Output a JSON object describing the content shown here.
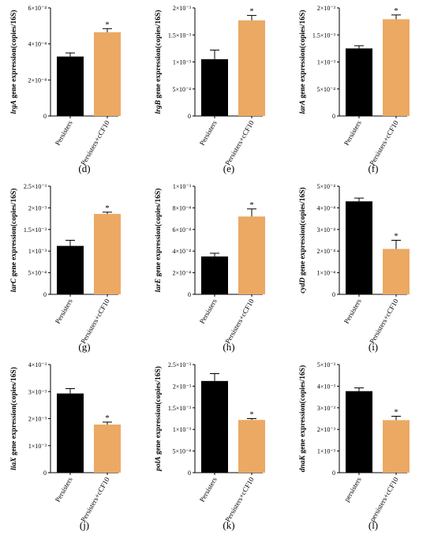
{
  "colors": {
    "control": "#000000",
    "treated": "#EBA964",
    "axis": "#000000"
  },
  "chart_data": [
    {
      "type": "bar",
      "panel_label": "(d)",
      "gene": "lrgA",
      "ylabel_suffix": " gene expression(copies/16S)",
      "categories": [
        "Persisters",
        "Persisters+cCF10"
      ],
      "values": [
        0.00033,
        0.000465
      ],
      "errors": [
        2e-05,
        2e-05
      ],
      "ylim": [
        0,
        0.0006
      ],
      "yticks": [
        0,
        0.0002,
        0.0004,
        0.0006
      ],
      "ytick_labels": [
        "0",
        "2×10⁻⁴",
        "4×10⁻⁴",
        "6×10⁻⁴"
      ],
      "significance": [
        "",
        "*"
      ]
    },
    {
      "type": "bar",
      "panel_label": "(e)",
      "gene": "lrgB",
      "ylabel_suffix": " gene expression(copies/16S)",
      "categories": [
        "Persisters",
        "Persisters+cCF10"
      ],
      "values": [
        0.00105,
        0.00177
      ],
      "errors": [
        0.00017,
        9e-05
      ],
      "ylim": [
        0,
        0.002
      ],
      "yticks": [
        0,
        0.0005,
        0.001,
        0.0015,
        0.002
      ],
      "ytick_labels": [
        "0",
        "5×10⁻⁴",
        "1×10⁻³",
        "1.5×10⁻³",
        "2×10⁻³"
      ],
      "significance": [
        "",
        "*"
      ]
    },
    {
      "type": "bar",
      "panel_label": "(f)",
      "gene": "larA",
      "ylabel_suffix": " gene expression(copies/16S)",
      "categories": [
        "Persisters",
        "Persisters+cCF10"
      ],
      "values": [
        0.00125,
        0.00179
      ],
      "errors": [
        5e-05,
        8e-05
      ],
      "ylim": [
        0,
        0.002
      ],
      "yticks": [
        0,
        0.0005,
        0.001,
        0.0015,
        0.002
      ],
      "ytick_labels": [
        "0",
        "5×10⁻⁴",
        "1×10⁻³",
        "1.5×10⁻³",
        "2×10⁻³"
      ],
      "significance": [
        "",
        "*"
      ]
    },
    {
      "type": "bar",
      "panel_label": "(g)",
      "gene": "larC",
      "ylabel_suffix": " gene expression(copies/16S)",
      "categories": [
        "Persisters",
        "Persisters+cCF10"
      ],
      "values": [
        0.00112,
        0.00186
      ],
      "errors": [
        0.00013,
        4e-05
      ],
      "ylim": [
        0,
        0.0025
      ],
      "yticks": [
        0,
        0.0005,
        0.001,
        0.0015,
        0.002,
        0.0025
      ],
      "ytick_labels": [
        "0",
        "5×10⁻⁴",
        "1×10⁻³",
        "1.5×10⁻³",
        "2×10⁻³",
        "2.5×10⁻³"
      ],
      "significance": [
        "",
        "*"
      ]
    },
    {
      "type": "bar",
      "panel_label": "(h)",
      "gene": "larE",
      "ylabel_suffix": " gene expression(copies/16S)",
      "categories": [
        "Persisters",
        "Persisters+cCF10"
      ],
      "values": [
        0.00035,
        0.00072
      ],
      "errors": [
        3e-05,
        7e-05
      ],
      "ylim": [
        0,
        0.001
      ],
      "yticks": [
        0,
        0.0002,
        0.0004,
        0.0006,
        0.0008,
        0.001
      ],
      "ytick_labels": [
        "0",
        "2×10⁻⁴",
        "4×10⁻⁴",
        "6×10⁻⁴",
        "8×10⁻⁴",
        "1×10⁻³"
      ],
      "significance": [
        "",
        "*"
      ]
    },
    {
      "type": "bar",
      "panel_label": "(i)",
      "gene": "cydD",
      "ylabel_suffix": " gene expression(copies/16S)",
      "categories": [
        "Persisters",
        "Persisters+cCF10"
      ],
      "values": [
        0.00043,
        0.00021
      ],
      "errors": [
        1.5e-05,
        4e-05
      ],
      "ylim": [
        0,
        0.0005
      ],
      "yticks": [
        0,
        0.0001,
        0.0002,
        0.0003,
        0.0004,
        0.0005
      ],
      "ytick_labels": [
        "0",
        "1×10⁻⁴",
        "2×10⁻⁴",
        "3×10⁻⁴",
        "4×10⁻⁴",
        "5×10⁻⁴"
      ],
      "significance": [
        "",
        "*"
      ]
    },
    {
      "type": "bar",
      "panel_label": "(j)",
      "gene": "liaX",
      "ylabel_suffix": " gene expression(copies/16S)",
      "categories": [
        "Persisters",
        "Persisters+cCF10"
      ],
      "values": [
        0.00293,
        0.00178
      ],
      "errors": [
        0.00018,
        9e-05
      ],
      "ylim": [
        0,
        0.004
      ],
      "yticks": [
        0,
        0.001,
        0.002,
        0.003,
        0.004
      ],
      "ytick_labels": [
        "0",
        "1×10⁻³",
        "2×10⁻³",
        "3×10⁻³",
        "4×10⁻³"
      ],
      "significance": [
        "",
        "*"
      ]
    },
    {
      "type": "bar",
      "panel_label": "(k)",
      "gene": "polA",
      "ylabel_suffix": " gene expression(copies/16S)",
      "categories": [
        "Persisters",
        "Persisters+cCF10"
      ],
      "values": [
        0.00212,
        0.00122
      ],
      "errors": [
        0.00017,
        3e-05
      ],
      "ylim": [
        0,
        0.0025
      ],
      "yticks": [
        0,
        0.0005,
        0.001,
        0.0015,
        0.002,
        0.0025
      ],
      "ytick_labels": [
        "0",
        "5×10⁻⁴",
        "1×10⁻³",
        "1.5×10⁻³",
        "2×10⁻³",
        "2.5×10⁻³"
      ],
      "significance": [
        "",
        "*"
      ]
    },
    {
      "type": "bar",
      "panel_label": "(l)",
      "gene": "dnaK",
      "ylabel_suffix": " gene expression(copies/16S)",
      "categories": [
        "persisters",
        "persisters+cCF10"
      ],
      "values": [
        0.00377,
        0.00243
      ],
      "errors": [
        0.00015,
        0.00018
      ],
      "ylim": [
        0,
        0.005
      ],
      "yticks": [
        0,
        0.001,
        0.002,
        0.003,
        0.004,
        0.005
      ],
      "ytick_labels": [
        "0",
        "1×10⁻³",
        "2×10⁻³",
        "3×10⁻³",
        "4×10⁻³",
        "5×10⁻³"
      ],
      "significance": [
        "",
        "*"
      ]
    }
  ]
}
